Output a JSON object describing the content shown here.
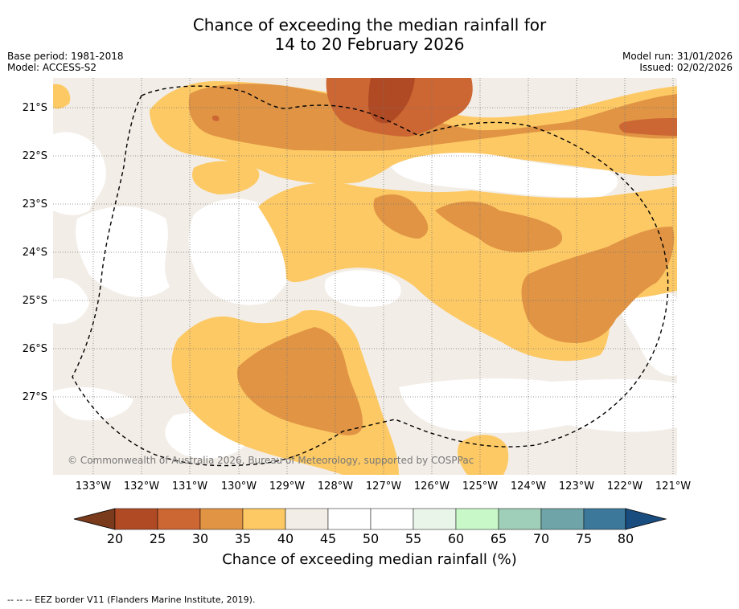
{
  "title": {
    "line1": "Chance of exceeding the median rainfall for",
    "line2": "14 to 20 February 2026"
  },
  "meta": {
    "base_period": "Base period: 1981-2018",
    "model": "Model: ACCESS-S2",
    "model_run": "Model run: 31/01/2026",
    "issued": "Issued: 02/02/2026"
  },
  "map": {
    "lat_labels": [
      "21°S",
      "22°S",
      "23°S",
      "24°S",
      "25°S",
      "26°S",
      "27°S"
    ],
    "lon_labels": [
      "133°W",
      "132°W",
      "131°W",
      "130°W",
      "129°W",
      "128°W",
      "127°W",
      "126°W",
      "125°W",
      "124°W",
      "123°W",
      "122°W",
      "121°W"
    ],
    "copyright": "© Commonwealth of Australia 2026, Bureau of Meteorology, supported by COSPPac"
  },
  "colorbar": {
    "ticks": [
      "20",
      "25",
      "30",
      "35",
      "40",
      "45",
      "50",
      "55",
      "60",
      "65",
      "70",
      "75",
      "80"
    ],
    "colors": [
      "#7a3a1c",
      "#b04a24",
      "#cc6633",
      "#e09444",
      "#fdc964",
      "#f2ede7",
      "#ffffff",
      "#ffffff",
      "#eaf5ea",
      "#c8f8c8",
      "#9fcfb8",
      "#6fa5a8",
      "#3b789a",
      "#1a4d7f"
    ],
    "title": "Chance of exceeding median rainfall (%)"
  },
  "footer": "--  --  -- EEZ border V11 (Flanders Marine Institute, 2019)."
}
